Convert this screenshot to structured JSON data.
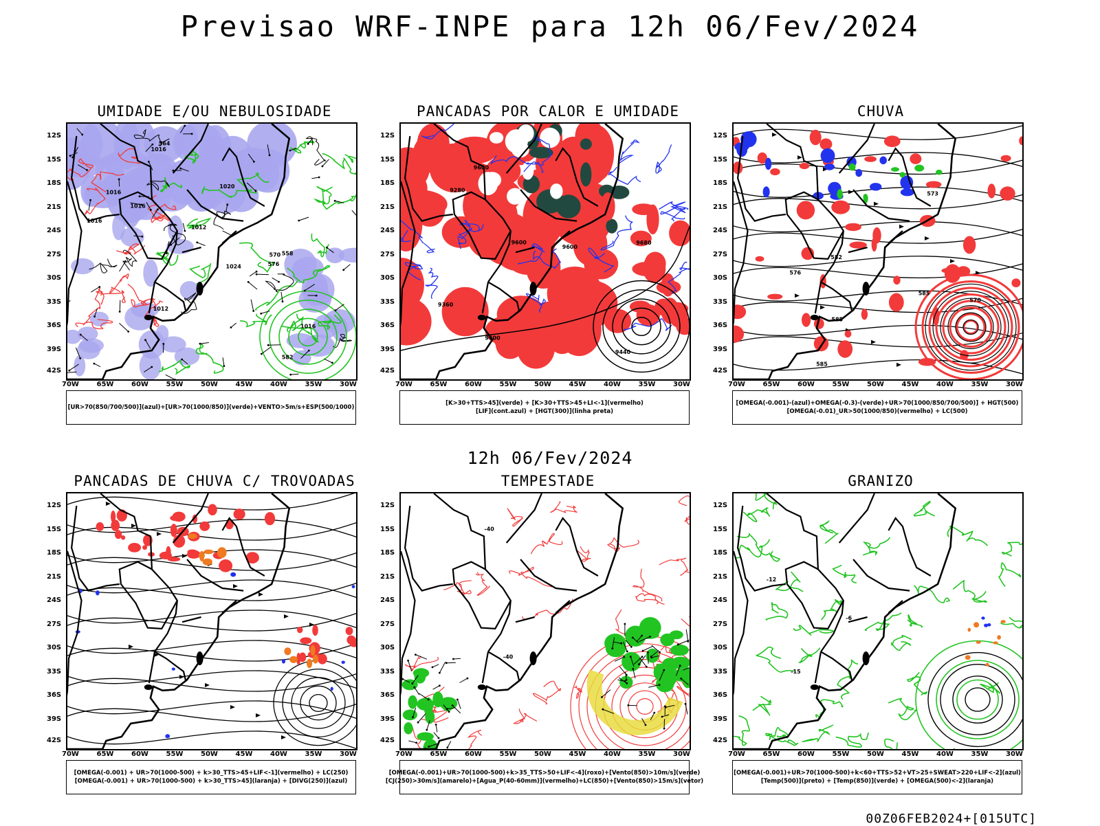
{
  "header": {
    "title": "Previsao WRF-INPE  para 12h 06/Fev/2024"
  },
  "middle_label": "12h 06/Fev/2024",
  "footer": "00Z06FEB2024+[015UTC]",
  "axes": {
    "lat_labels": [
      "12S",
      "15S",
      "18S",
      "21S",
      "24S",
      "27S",
      "30S",
      "33S",
      "36S",
      "39S",
      "42S"
    ],
    "lon_labels": [
      "70W",
      "65W",
      "60W",
      "55W",
      "50W",
      "45W",
      "40W",
      "35W",
      "30W"
    ]
  },
  "colors": {
    "red": "#f23a3a",
    "green": "#22c422",
    "blue": "#2233ee",
    "lavender": "#a9a6ee",
    "dark_teal": "#22493f",
    "orange": "#f07a20",
    "yellow": "#e8dc40",
    "black": "#000000"
  },
  "panels": [
    {
      "id": "umidade",
      "title": "UMIDADE E/OU NEBULOSIDADE",
      "legend": [
        "[UR>70(850/700/500)](azul)+[UR>70(1000/850)](verde)+VENTO>5m/s+ESP(500/1000)"
      ],
      "contour_labels": [
        "1016",
        "1016",
        "1012",
        "1016",
        "1012",
        "1020",
        "1016",
        "1024",
        "1016",
        "576",
        "564",
        "570",
        "582",
        "558"
      ]
    },
    {
      "id": "pancadas-calor",
      "title": "PANCADAS POR CALOR E UMIDADE",
      "legend": [
        "[K>30+TTS>45](verde) + [K>30+TTS>45+LI<-1](vermelho)",
        "[LIF](cont.azul) + [HGT(300)](linha preta)"
      ],
      "contour_labels": [
        "9600",
        "9680",
        "9600",
        "9440",
        "9360",
        "9280",
        "9600",
        "9600"
      ]
    },
    {
      "id": "chuva",
      "title": "CHUVA",
      "legend": [
        "[OMEGA(-0.001)-(azul)+OMEGA(-0.3)-(verde)+UR>70(1000/850/700/500)] + HGT(500)",
        "[OMEGA(-0.01)_UR>50(1000/850)(vermelho) + LC(500)"
      ],
      "contour_labels": [
        "585",
        "585",
        "582",
        "585",
        "570",
        "573",
        "576"
      ]
    },
    {
      "id": "trovoadas",
      "title": "PANCADAS DE CHUVA C/ TROVOADAS",
      "legend": [
        "[OMEGA(-0.001) + UR>70(1000-500) + k>30_TTS>45+LIF<-1](vermelho) + LC(250)",
        "[OMEGA(-0.001) + UR>70(1000-500) + k>30_TTS>45](laranja) + [DIVG(250)](azul)"
      ],
      "contour_labels": []
    },
    {
      "id": "tempestade",
      "title": "TEMPESTADE",
      "legend": [
        "[OMEGA(-0.001)+UR>70(1000-500)+k>35_TTS>50+LIF<-4](roxo)+[Vento(850)>10m/s](verde)",
        "[CJ(250)>30m/s](amarelo)+[Agua_P(40-60mm)](vermelho)+LC(850)+[Vento(850)>15m/s](vetor)"
      ],
      "contour_labels": [
        "-40",
        "-40"
      ]
    },
    {
      "id": "granizo",
      "title": "GRANIZO",
      "legend": [
        "[OMEGA(-0.001)+UR>70(1000-500)+k<60+TTS>52+VT>25+SWEAT>220+LIF<-2](azul)",
        "[Temp(500)](preto) + [Temp(850)](verde) + [OMEGA(500)<-2](laranja)"
      ],
      "contour_labels": [
        "-6",
        "-12",
        "-15"
      ]
    }
  ]
}
